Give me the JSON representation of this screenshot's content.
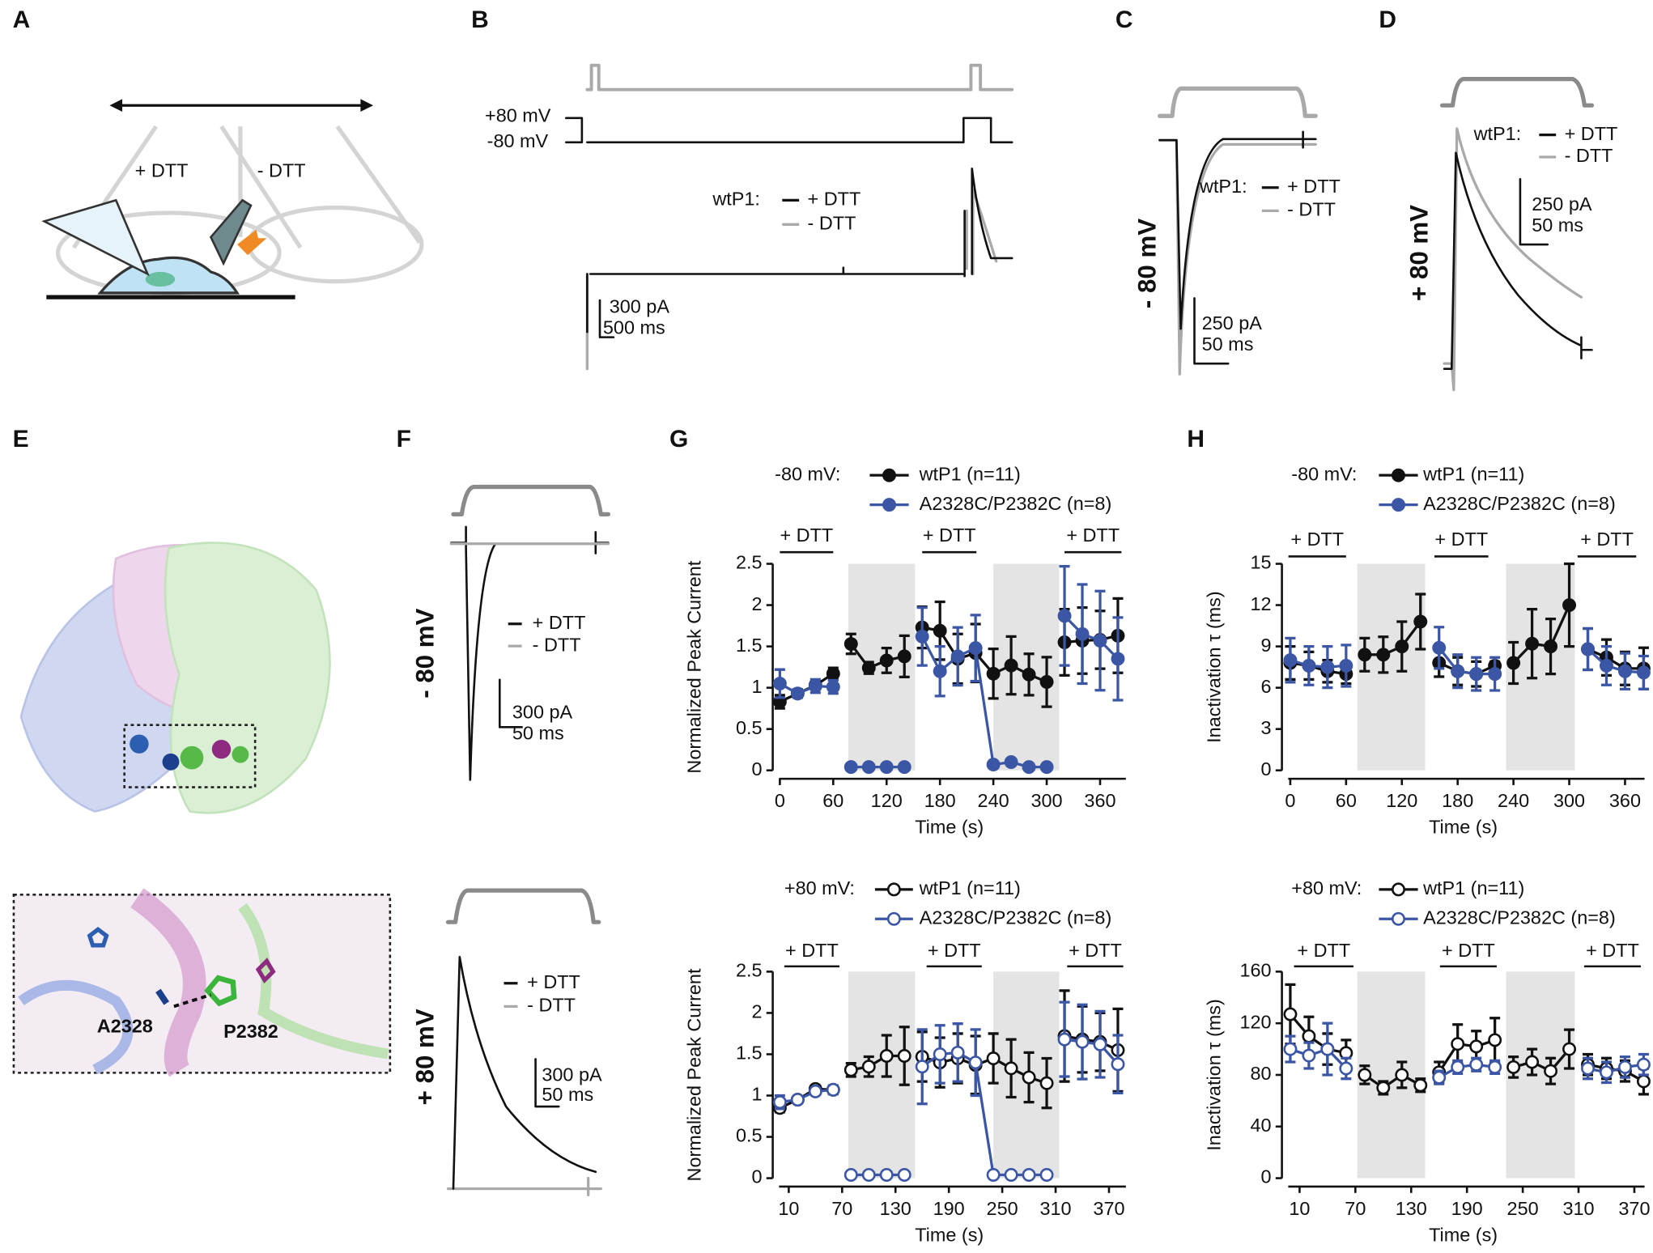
{
  "panel_labels": [
    "A",
    "B",
    "C",
    "D",
    "E",
    "F",
    "G",
    "H"
  ],
  "panel_a": {
    "left_label": "+ DTT",
    "right_label": "- DTT"
  },
  "panel_b": {
    "voltage_high": "+80 mV",
    "voltage_low": "-80 mV",
    "legend_title": "wtP1:",
    "legend": [
      "+ DTT",
      "- DTT"
    ],
    "scale_current": "300 pA",
    "scale_time": "500 ms"
  },
  "panel_c": {
    "legend_title": "wtP1:",
    "legend": [
      "+ DTT",
      "- DTT"
    ],
    "voltage": "- 80 mV",
    "scale_current": "250 pA",
    "scale_time": "50 ms"
  },
  "panel_d": {
    "legend_title": "wtP1:",
    "legend": [
      "+ DTT",
      "- DTT"
    ],
    "voltage": "+ 80 mV",
    "scale_current": "250 pA",
    "scale_time": "50 ms"
  },
  "panel_e": {
    "residues": [
      "A2328",
      "P2382"
    ]
  },
  "panel_f": {
    "top": {
      "legend": [
        "+ DTT",
        "- DTT"
      ],
      "voltage": "- 80 mV",
      "scale_current": "300 pA",
      "scale_time": "50 ms"
    },
    "bottom": {
      "legend": [
        "+ DTT",
        "- DTT"
      ],
      "voltage": "+ 80 mV",
      "scale_current": "300 pA",
      "scale_time": "50 ms"
    }
  },
  "chart_data": [
    {
      "type": "line",
      "legend_title": "-80 mV:",
      "x_label": "Time (s)",
      "y_label": "Normalized Peak Current",
      "x": [
        0,
        20,
        40,
        60,
        80,
        100,
        120,
        140,
        160,
        180,
        200,
        220,
        240,
        260,
        280,
        300,
        320,
        340,
        360,
        380
      ],
      "xlim": [
        -8,
        389
      ],
      "xticks": [
        0,
        60,
        120,
        180,
        240,
        300,
        360
      ],
      "ylim": [
        0,
        2.5
      ],
      "yticks": [
        0,
        0.5,
        1,
        1.5,
        2,
        2.5
      ],
      "shaded_regions": [
        [
          77,
          152
        ],
        [
          240,
          314
        ]
      ],
      "dtt_bars": [
        {
          "label": "+ DTT",
          "x": [
            0,
            60
          ]
        },
        {
          "label": "+ DTT",
          "x": [
            160,
            221
          ]
        },
        {
          "label": "+ DTT",
          "x": [
            320,
            384
          ]
        }
      ],
      "series": [
        {
          "name": "wtP1 (n=11)",
          "color": "#111111",
          "marker": "filled",
          "values": [
            0.83,
            0.93,
            1.03,
            1.17,
            1.53,
            1.24,
            1.33,
            1.38,
            1.73,
            1.69,
            1.35,
            1.42,
            1.17,
            1.27,
            1.16,
            1.07,
            1.55,
            1.57,
            1.58,
            1.63
          ],
          "errors": [
            0.08,
            0.05,
            0.05,
            0.07,
            0.12,
            0.07,
            0.15,
            0.25,
            0.25,
            0.35,
            0.3,
            0.35,
            0.3,
            0.35,
            0.25,
            0.3,
            0.4,
            0.4,
            0.35,
            0.45
          ]
        },
        {
          "name": "A2328C/P2382C (n=8)",
          "color": "#3b56a5",
          "marker": "filled",
          "values": [
            1.05,
            0.93,
            1.02,
            1.01,
            0.04,
            0.04,
            0.04,
            0.04,
            1.62,
            1.2,
            1.38,
            1.48,
            0.07,
            0.1,
            0.04,
            0.04,
            1.87,
            1.65,
            1.57,
            1.35
          ],
          "errors": [
            0.17,
            0.05,
            0.08,
            0.08,
            0.01,
            0.01,
            0.01,
            0.01,
            0.35,
            0.3,
            0.35,
            0.4,
            0.02,
            0.03,
            0.01,
            0.01,
            0.6,
            0.6,
            0.6,
            0.5
          ]
        }
      ]
    },
    {
      "type": "line",
      "legend_title": "+80 mV:",
      "x_label": "Time (s)",
      "y_label": "Normalized Peak Current",
      "x": [
        0,
        20,
        40,
        60,
        80,
        100,
        120,
        140,
        160,
        180,
        200,
        220,
        240,
        260,
        280,
        300,
        320,
        340,
        360,
        380
      ],
      "xlim": [
        -8,
        389
      ],
      "xticks": [
        10,
        70,
        130,
        190,
        250,
        310,
        370
      ],
      "ylim": [
        0,
        2.5
      ],
      "yticks": [
        0,
        0.5,
        1,
        1.5,
        2,
        2.5
      ],
      "shaded_regions": [
        [
          77,
          152
        ],
        [
          240,
          314
        ]
      ],
      "dtt_bars": [
        {
          "label": "+ DTT",
          "x": [
            5,
            67
          ]
        },
        {
          "label": "+ DTT",
          "x": [
            165,
            227
          ]
        },
        {
          "label": "+ DTT",
          "x": [
            323,
            386
          ]
        }
      ],
      "series": [
        {
          "name": "wtP1 (n=11)",
          "color": "#111111",
          "marker": "open",
          "values": [
            0.85,
            0.95,
            1.08,
            1.07,
            1.31,
            1.35,
            1.48,
            1.48,
            1.47,
            1.4,
            1.45,
            1.37,
            1.45,
            1.33,
            1.22,
            1.15,
            1.72,
            1.68,
            1.65,
            1.55
          ],
          "errors": [
            0.05,
            0.03,
            0.04,
            0.05,
            0.08,
            0.12,
            0.25,
            0.35,
            0.3,
            0.3,
            0.3,
            0.35,
            0.3,
            0.35,
            0.3,
            0.3,
            0.55,
            0.4,
            0.35,
            0.5
          ]
        },
        {
          "name": "A2328C/P2382C (n=8)",
          "color": "#3b56a5",
          "marker": "open",
          "values": [
            0.92,
            0.95,
            1.05,
            1.07,
            0.04,
            0.04,
            0.04,
            0.04,
            1.35,
            1.5,
            1.52,
            1.4,
            0.04,
            0.04,
            0.04,
            0.04,
            1.68,
            1.65,
            1.62,
            1.38
          ],
          "errors": [
            0.08,
            0.03,
            0.04,
            0.05,
            0.01,
            0.01,
            0.01,
            0.01,
            0.45,
            0.35,
            0.35,
            0.4,
            0.01,
            0.01,
            0.01,
            0.01,
            0.45,
            0.45,
            0.4,
            0.35
          ]
        }
      ]
    },
    {
      "type": "line",
      "legend_title": "-80 mV:",
      "x_label": "Time (s)",
      "y_label": "Inactivation τ (ms)",
      "x": [
        0,
        20,
        40,
        60,
        80,
        100,
        120,
        140,
        160,
        180,
        200,
        220,
        240,
        260,
        280,
        300,
        320,
        340,
        360,
        380
      ],
      "xlim": [
        -9,
        381
      ],
      "xticks": [
        0,
        60,
        120,
        180,
        240,
        300,
        360
      ],
      "ylim": [
        0,
        15
      ],
      "yticks": [
        0,
        3,
        6,
        9,
        12,
        15
      ],
      "shaded_regions": [
        [
          72,
          145
        ],
        [
          232,
          306
        ]
      ],
      "dtt_bars": [
        {
          "label": "+ DTT",
          "x": [
            -2,
            60
          ]
        },
        {
          "label": "+ DTT",
          "x": [
            155,
            213
          ]
        },
        {
          "label": "+ DTT",
          "x": [
            309,
            372
          ]
        }
      ],
      "series": [
        {
          "name": "wtP1 (n=11)",
          "color": "#111111",
          "marker": "filled",
          "values": [
            7.8,
            7.6,
            7.2,
            7.0,
            8.4,
            8.4,
            9.0,
            10.8,
            7.8,
            7.2,
            7.0,
            7.6,
            7.8,
            9.2,
            9.0,
            12.0,
            8.8,
            8.2,
            7.4,
            7.4
          ],
          "errors": [
            1.2,
            1.0,
            0.8,
            0.7,
            1.2,
            1.3,
            1.8,
            2.0,
            1.0,
            1.0,
            0.9,
            0.3,
            1.5,
            2.5,
            2.0,
            3.0,
            1.5,
            1.3,
            1.2,
            1.5
          ]
        },
        {
          "name": "A2328C/P2382C (n=8)",
          "color": "#3b56a5",
          "marker": "filled",
          "values": [
            8.0,
            7.6,
            7.5,
            7.6,
            null,
            null,
            null,
            null,
            8.9,
            7.2,
            7.0,
            7.0,
            null,
            null,
            null,
            null,
            8.8,
            7.6,
            7.2,
            7.1
          ],
          "errors": [
            1.6,
            1.4,
            1.5,
            1.5,
            null,
            null,
            null,
            null,
            1.5,
            1.2,
            1.2,
            1.2,
            null,
            null,
            null,
            null,
            1.5,
            1.4,
            1.3,
            1.2
          ]
        }
      ]
    },
    {
      "type": "line",
      "legend_title": "+80 mV:",
      "x_label": "Time (s)",
      "y_label": "Inactivation τ (ms)",
      "x": [
        0,
        20,
        40,
        60,
        80,
        100,
        120,
        140,
        160,
        180,
        200,
        220,
        240,
        260,
        280,
        300,
        320,
        340,
        360,
        380
      ],
      "xlim": [
        -9,
        381
      ],
      "xticks": [
        10,
        70,
        130,
        190,
        250,
        310,
        370
      ],
      "ylim": [
        0,
        160
      ],
      "yticks": [
        0,
        40,
        80,
        120,
        160
      ],
      "shaded_regions": [
        [
          72,
          145
        ],
        [
          232,
          306
        ]
      ],
      "dtt_bars": [
        {
          "label": "+ DTT",
          "x": [
            4,
            68
          ]
        },
        {
          "label": "+ DTT",
          "x": [
            161,
            222
          ]
        },
        {
          "label": "+ DTT",
          "x": [
            316,
            377
          ]
        }
      ],
      "series": [
        {
          "name": "wtP1 (n=11)",
          "color": "#111111",
          "marker": "open",
          "values": [
            127,
            110,
            100,
            97,
            80,
            70,
            80,
            72,
            82,
            104,
            102,
            107,
            86,
            90,
            83,
            100,
            88,
            85,
            83,
            75
          ],
          "errors": [
            23,
            15,
            12,
            10,
            7,
            5,
            10,
            5,
            8,
            15,
            12,
            17,
            8,
            10,
            10,
            15,
            8,
            8,
            8,
            10
          ]
        },
        {
          "name": "A2328C/P2382C (n=8)",
          "color": "#3b56a5",
          "marker": "open",
          "values": [
            100,
            95,
            100,
            85,
            null,
            null,
            null,
            null,
            78,
            86,
            88,
            86,
            null,
            null,
            null,
            null,
            85,
            82,
            86,
            88
          ],
          "errors": [
            10,
            10,
            20,
            8,
            null,
            null,
            null,
            null,
            5,
            5,
            5,
            5,
            null,
            null,
            null,
            null,
            8,
            8,
            8,
            8
          ]
        }
      ]
    }
  ]
}
